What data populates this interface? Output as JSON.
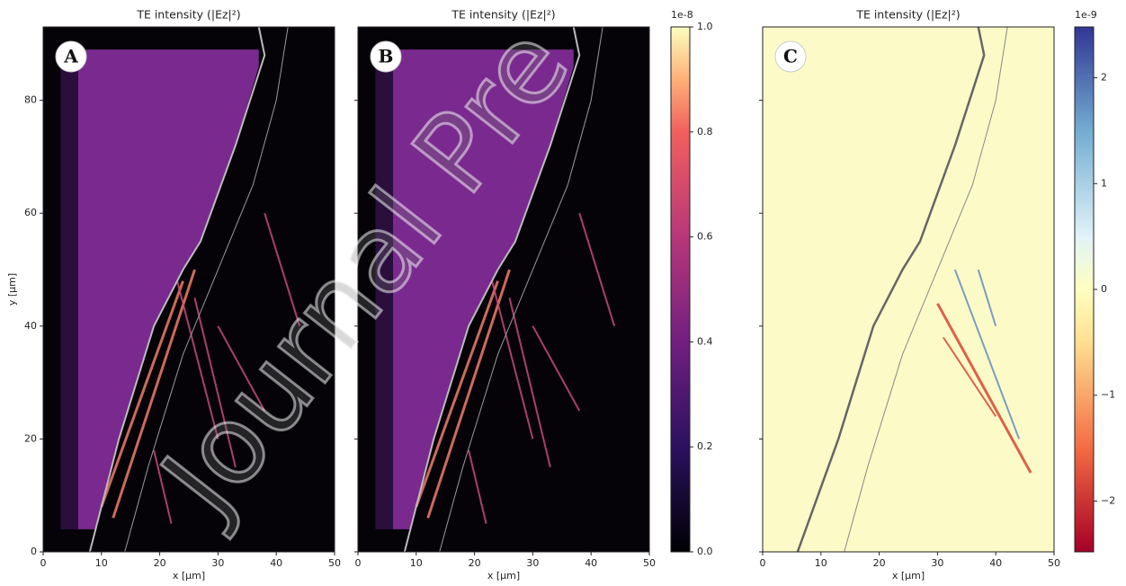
{
  "chart_data": [
    {
      "type": "heatmap",
      "panel": "A",
      "title": "TE intensity (|Ez|²)",
      "xlabel": "x [µm]",
      "ylabel": "y [µm]",
      "xlim": [
        0,
        50
      ],
      "ylim": [
        0,
        93
      ],
      "xticks": [
        0,
        10,
        20,
        30,
        40,
        50
      ],
      "yticks": [
        0,
        20,
        40,
        60,
        80
      ]
    },
    {
      "type": "heatmap",
      "panel": "B",
      "title": "TE intensity (|Ez|²)",
      "xlabel": "x [µm]",
      "xlim": [
        0,
        50
      ],
      "ylim": [
        0,
        93
      ],
      "xticks": [
        0,
        10,
        20,
        30,
        40,
        50
      ],
      "colorbar": {
        "colormap": "magma",
        "offset": "1e-8",
        "clim": [
          0,
          1
        ],
        "ticks": [
          {
            "value": 0,
            "label": "0.0"
          },
          {
            "value": 0.2,
            "label": "0.2"
          },
          {
            "value": 0.4,
            "label": "0.4"
          },
          {
            "value": 0.6,
            "label": "0.6"
          },
          {
            "value": 0.8,
            "label": "0.8"
          },
          {
            "value": 1,
            "label": "1.0"
          }
        ]
      }
    },
    {
      "type": "heatmap",
      "panel": "C",
      "title": "TE intensity (|Ez|²)",
      "xlabel": "x [µm]",
      "xlim": [
        0,
        50
      ],
      "ylim": [
        0,
        93
      ],
      "xticks": [
        0,
        10,
        20,
        30,
        40,
        50
      ],
      "colorbar": {
        "colormap": "RdYlBu",
        "offset": "1e-9",
        "clim": [
          -2.48,
          2.48
        ],
        "ticks": [
          {
            "value": -2,
            "label": "−2"
          },
          {
            "value": -1,
            "label": "−1"
          },
          0,
          1,
          2
        ]
      }
    }
  ],
  "watermark": "Journal Pre"
}
